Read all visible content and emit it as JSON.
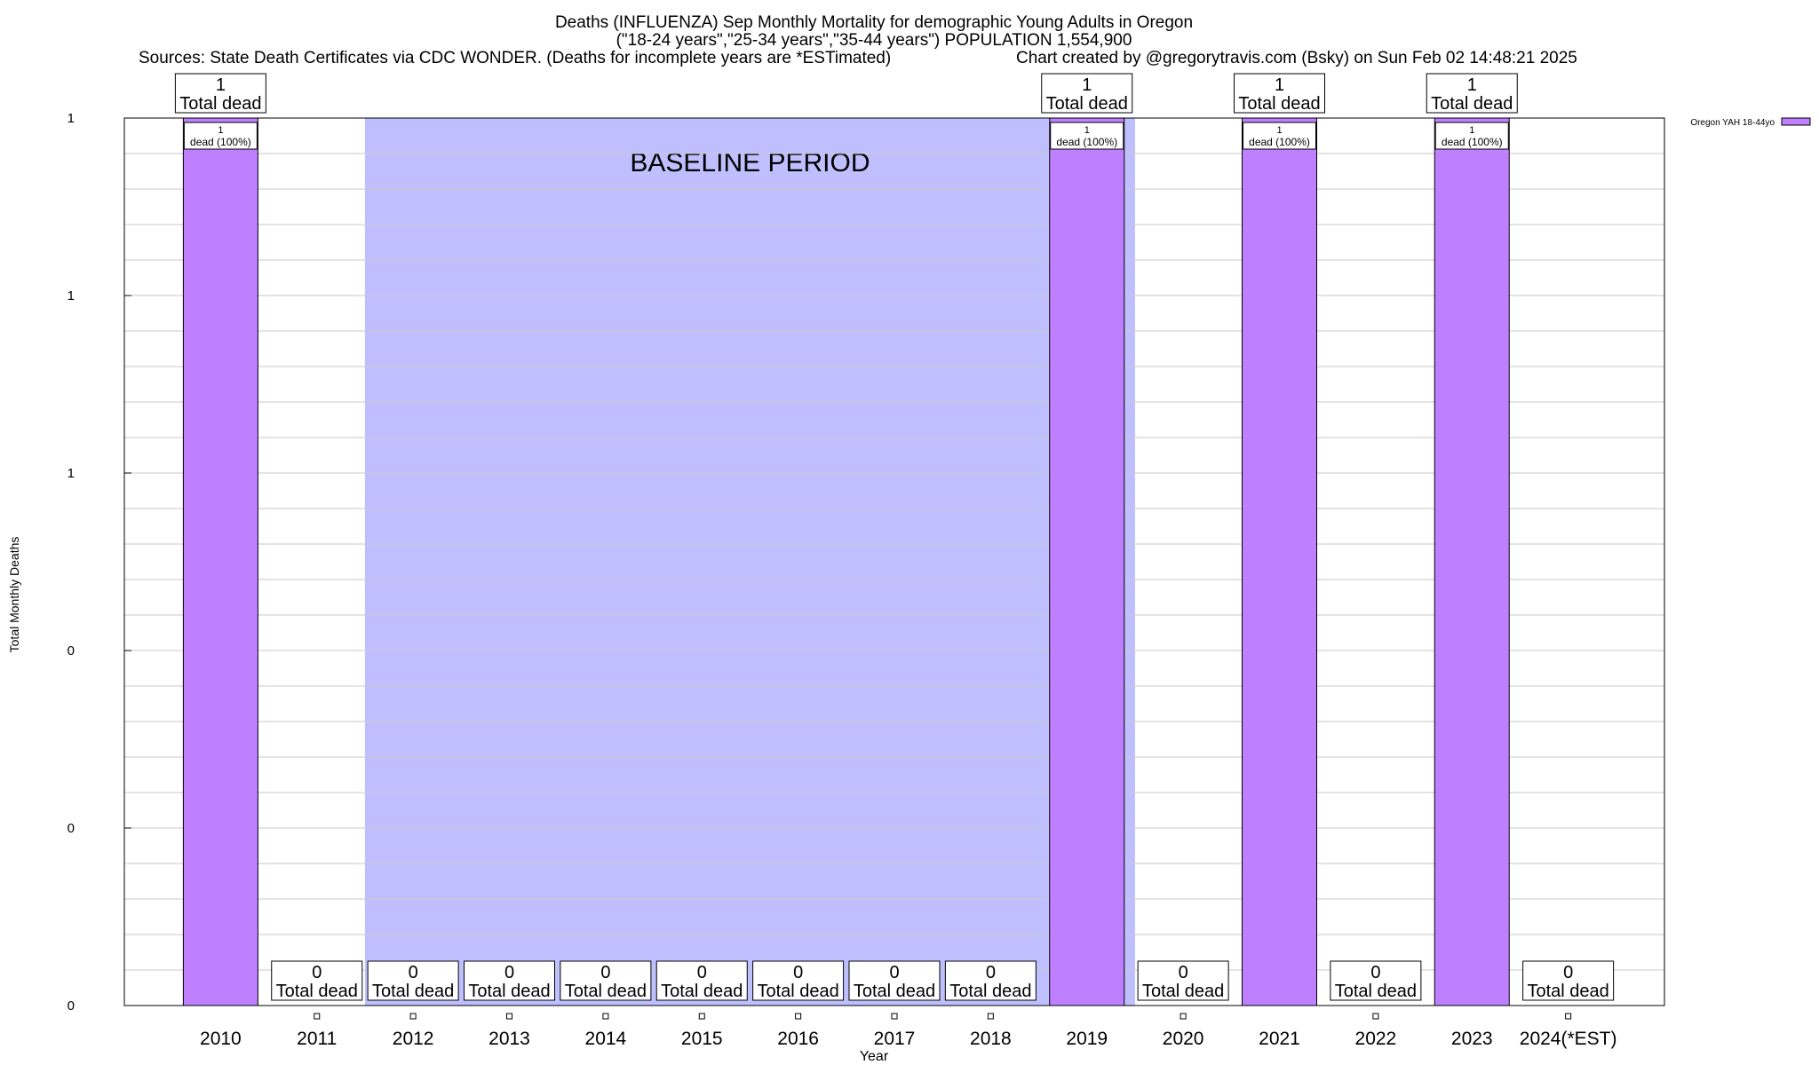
{
  "header": {
    "title_line1": "Deaths (INFLUENZA) Sep Monthly Mortality for demographic Young Adults in Oregon",
    "title_line2": "(\"18-24 years\",\"25-34 years\",\"35-44 years\") POPULATION 1,554,900",
    "sources": "Sources: State Death Certificates via CDC WONDER. (Deaths for incomplete years are *ESTimated)",
    "credit": "Chart created by @gregorytravis.com (Bsky) on Sun Feb 02 14:48:21 2025"
  },
  "chart_data": {
    "type": "bar",
    "title": "Deaths (INFLUENZA) Sep Monthly Mortality for demographic Young Adults in Oregon",
    "xlabel": "Year",
    "ylabel": "Total Monthly Deaths",
    "categories": [
      "2010",
      "2011",
      "2012",
      "2013",
      "2014",
      "2015",
      "2016",
      "2017",
      "2018",
      "2019",
      "2020",
      "2021",
      "2022",
      "2023",
      "2024(*EST)"
    ],
    "series": [
      {
        "name": "Oregon YAH 18-44yo",
        "color": "#bf80ff",
        "values": [
          1,
          0,
          0,
          0,
          0,
          0,
          0,
          0,
          0,
          1,
          0,
          1,
          0,
          1,
          0
        ]
      }
    ],
    "ylim": [
      0,
      1
    ],
    "ytick_labels": [
      "0",
      "0",
      "0",
      "1",
      "1",
      "1"
    ],
    "total_label_word": "Total dead",
    "inner_labels": [
      {
        "category": "2010",
        "line1": "1",
        "line2": "dead (100%)"
      },
      {
        "category": "2019",
        "line1": "1",
        "line2": "dead (100%)"
      },
      {
        "category": "2021",
        "line1": "1",
        "line2": "dead (100%)"
      },
      {
        "category": "2023",
        "line1": "1",
        "line2": "dead (100%)"
      }
    ],
    "baseline": {
      "label": "BASELINE PERIOD",
      "start": "2012",
      "end": "2019",
      "color": "#bfbfff"
    },
    "grid": true,
    "legend_position": "top-right"
  }
}
